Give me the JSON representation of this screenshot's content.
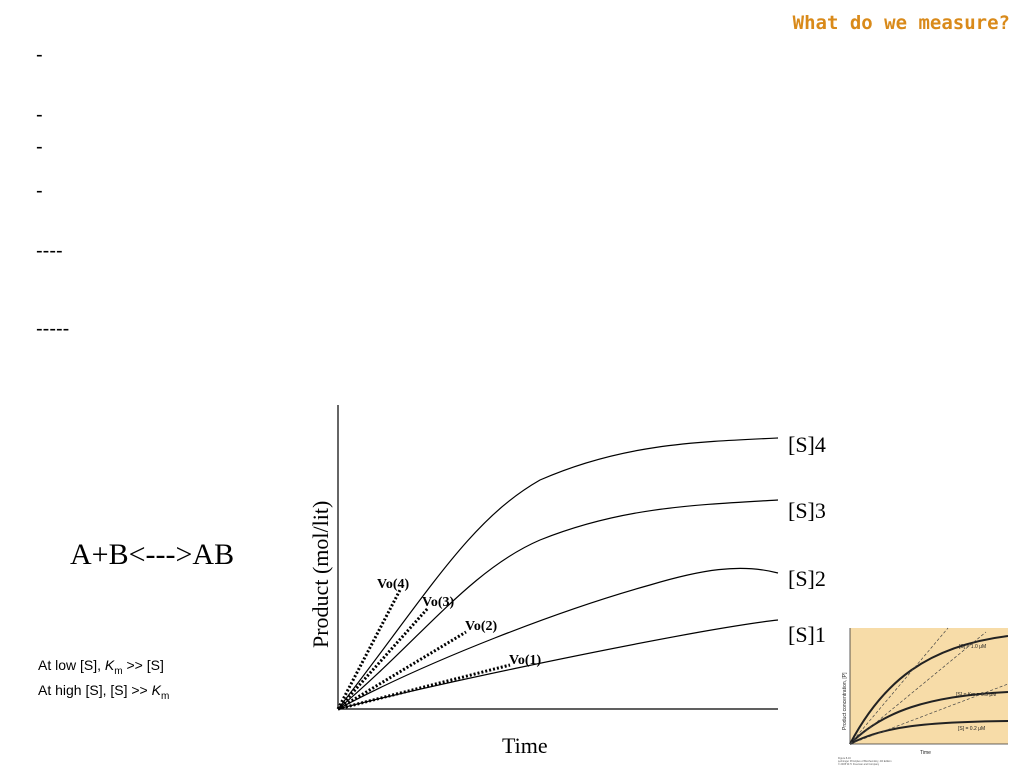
{
  "slide": {
    "title": "What do we measure?",
    "title_color": "#d98a1a",
    "dash_lines": [
      "-",
      "-",
      "-",
      "-",
      "----",
      "-----"
    ],
    "equation": "A+B<--->AB",
    "notes": [
      {
        "prefix": "At low [S], ",
        "var": "K",
        "sub": "m",
        "suffix": " >> [S]",
        "var_first": true
      },
      {
        "prefix": "At high [S], [S] >> ",
        "var": "K",
        "sub": "m",
        "suffix": "",
        "var_first": false
      }
    ]
  },
  "chart_data": {
    "type": "line",
    "xlabel": "Time",
    "ylabel": "Product (mol/lit)",
    "series": [
      {
        "name": "[S]4",
        "tangent_label": "Vo(4)"
      },
      {
        "name": "[S]3",
        "tangent_label": "Vo(3)"
      },
      {
        "name": "[S]2",
        "tangent_label": "Vo(2)"
      },
      {
        "name": "[S]1",
        "tangent_label": "Vo(1)"
      }
    ]
  },
  "inset_figure": {
    "background": "#f7dca8",
    "ylabel": "Product concentration, [P]",
    "xlabel": "Time",
    "labels": [
      "[S] = 1.0 μM",
      "[S] = Km = 0.5 μM",
      "[S] = 0.2 μM"
    ],
    "caption": [
      "Figure 8-16",
      "Lehninger Principles of Biochemistry, 4th Edition",
      "© 2005 W.H. Freeman and Company"
    ]
  }
}
